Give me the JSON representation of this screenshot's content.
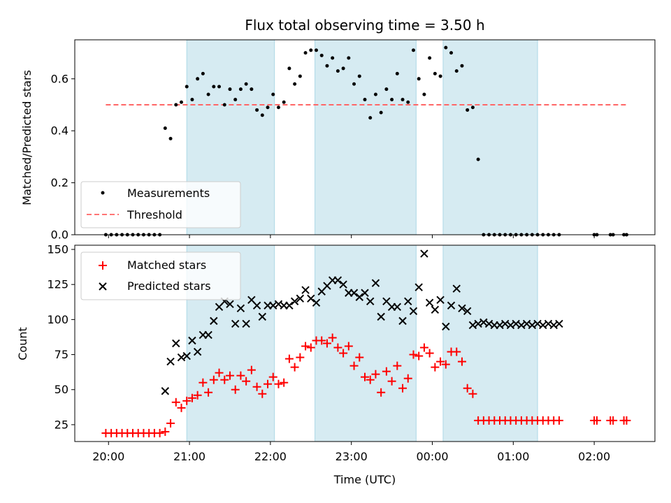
{
  "title": "Flux total observing time = 3.50 h",
  "chart_data": [
    {
      "type": "scatter",
      "ylabel": "Matched/Predicted stars",
      "xlabel": "",
      "xlim": [
        "19:35",
        "02:45"
      ],
      "ylim": [
        0,
        0.75
      ],
      "yticks": [
        0.0,
        0.2,
        0.4,
        0.6
      ],
      "ytick_labels": [
        "0.0",
        "0.2",
        "0.4",
        "0.6"
      ],
      "legend_position": "lower-left",
      "shaded_intervals": [
        [
          "20:58",
          "22:03"
        ],
        [
          "22:33",
          "23:48"
        ],
        [
          "00:08",
          "01:18"
        ]
      ],
      "shade_color": "#add8e6",
      "threshold": {
        "name": "Threshold",
        "y": 0.5,
        "x_start": "19:58",
        "x_end": "02:25",
        "color": "#ff6666"
      },
      "series": [
        {
          "name": "Measurements",
          "color": "#000000",
          "x": [
            "19:58",
            "20:02",
            "20:06",
            "20:10",
            "20:14",
            "20:18",
            "20:22",
            "20:26",
            "20:30",
            "20:34",
            "20:38",
            "20:42",
            "20:46",
            "20:50",
            "20:54",
            "20:58",
            "21:02",
            "21:06",
            "21:10",
            "21:14",
            "21:18",
            "21:22",
            "21:26",
            "21:30",
            "21:34",
            "21:38",
            "21:42",
            "21:46",
            "21:50",
            "21:54",
            "21:58",
            "22:02",
            "22:06",
            "22:10",
            "22:14",
            "22:18",
            "22:22",
            "22:26",
            "22:30",
            "22:34",
            "22:38",
            "22:42",
            "22:46",
            "22:50",
            "22:54",
            "22:58",
            "23:02",
            "23:06",
            "23:10",
            "23:14",
            "23:18",
            "23:22",
            "23:26",
            "23:30",
            "23:34",
            "23:38",
            "23:42",
            "23:46",
            "23:50",
            "23:54",
            "23:58",
            "00:02",
            "00:06",
            "00:10",
            "00:14",
            "00:18",
            "00:22",
            "00:26",
            "00:30",
            "00:34",
            "00:38",
            "00:42",
            "00:46",
            "00:50",
            "00:54",
            "00:58",
            "01:02",
            "01:06",
            "01:10",
            "01:14",
            "01:18",
            "01:22",
            "01:26",
            "01:30",
            "01:34",
            "02:00",
            "02:02",
            "02:12",
            "02:14",
            "02:22",
            "02:24"
          ],
          "y": [
            0.0,
            0.0,
            0.0,
            0.0,
            0.0,
            0.0,
            0.0,
            0.0,
            0.0,
            0.0,
            0.0,
            0.41,
            0.37,
            0.5,
            0.51,
            0.57,
            0.52,
            0.6,
            0.62,
            0.54,
            0.57,
            0.57,
            0.5,
            0.56,
            0.52,
            0.56,
            0.58,
            0.56,
            0.48,
            0.46,
            0.49,
            0.54,
            0.49,
            0.51,
            0.64,
            0.58,
            0.61,
            0.7,
            0.71,
            0.71,
            0.69,
            0.65,
            0.68,
            0.63,
            0.64,
            0.68,
            0.58,
            0.61,
            0.52,
            0.45,
            0.54,
            0.47,
            0.56,
            0.52,
            0.62,
            0.52,
            0.51,
            0.71,
            0.6,
            0.54,
            0.68,
            0.62,
            0.61,
            0.72,
            0.7,
            0.63,
            0.65,
            0.48,
            0.49,
            0.29,
            0.0,
            0.0,
            0.0,
            0.0,
            0.0,
            0.0,
            0.0,
            0.0,
            0.0,
            0.0,
            0.0,
            0.0,
            0.0,
            0.0,
            0.0,
            0.0,
            0.0,
            0.0,
            0.0,
            0.0,
            0.0
          ]
        }
      ]
    },
    {
      "type": "scatter",
      "ylabel": "Count",
      "xlabel": "Time (UTC)",
      "xlim": [
        "19:35",
        "02:45"
      ],
      "ylim": [
        13,
        153
      ],
      "yticks": [
        25,
        50,
        75,
        100,
        125,
        150
      ],
      "ytick_labels": [
        "25",
        "50",
        "75",
        "100",
        "125",
        "150"
      ],
      "xticks": [
        "20:00",
        "21:00",
        "22:00",
        "23:00",
        "00:00",
        "01:00",
        "02:00"
      ],
      "xtick_labels": [
        "20:00",
        "21:00",
        "22:00",
        "23:00",
        "00:00",
        "01:00",
        "02:00"
      ],
      "legend_position": "upper-left",
      "shaded_intervals": [
        [
          "20:58",
          "22:03"
        ],
        [
          "22:33",
          "23:48"
        ],
        [
          "00:08",
          "01:18"
        ]
      ],
      "shade_color": "#add8e6",
      "series": [
        {
          "name": "Matched stars",
          "marker": "plus",
          "color": "#ff0000",
          "x": [
            "19:58",
            "20:02",
            "20:06",
            "20:10",
            "20:14",
            "20:18",
            "20:22",
            "20:26",
            "20:30",
            "20:34",
            "20:38",
            "20:42",
            "20:46",
            "20:50",
            "20:54",
            "20:58",
            "21:02",
            "21:06",
            "21:10",
            "21:14",
            "21:18",
            "21:22",
            "21:26",
            "21:30",
            "21:34",
            "21:38",
            "21:42",
            "21:46",
            "21:50",
            "21:54",
            "21:58",
            "22:02",
            "22:06",
            "22:10",
            "22:14",
            "22:18",
            "22:22",
            "22:26",
            "22:30",
            "22:34",
            "22:38",
            "22:42",
            "22:46",
            "22:50",
            "22:54",
            "22:58",
            "23:02",
            "23:06",
            "23:10",
            "23:14",
            "23:18",
            "23:22",
            "23:26",
            "23:30",
            "23:34",
            "23:38",
            "23:42",
            "23:46",
            "23:50",
            "23:54",
            "23:58",
            "00:02",
            "00:06",
            "00:10",
            "00:14",
            "00:18",
            "00:22",
            "00:26",
            "00:30",
            "00:34",
            "00:38",
            "00:42",
            "00:46",
            "00:50",
            "00:54",
            "00:58",
            "01:02",
            "01:06",
            "01:10",
            "01:14",
            "01:18",
            "01:22",
            "01:26",
            "01:30",
            "01:34",
            "02:00",
            "02:02",
            "02:12",
            "02:14",
            "02:22",
            "02:24"
          ],
          "y": [
            19,
            19,
            19,
            19,
            19,
            19,
            19,
            19,
            19,
            19,
            19,
            20,
            26,
            41,
            37,
            42,
            44,
            46,
            55,
            48,
            57,
            62,
            57,
            60,
            50,
            60,
            56,
            64,
            52,
            47,
            54,
            59,
            54,
            55,
            72,
            66,
            73,
            81,
            80,
            85,
            85,
            83,
            87,
            80,
            76,
            81,
            67,
            73,
            59,
            57,
            61,
            48,
            63,
            56,
            67,
            51,
            58,
            75,
            74,
            80,
            76,
            66,
            70,
            68,
            77,
            77,
            70,
            51,
            47,
            28,
            28,
            28,
            28,
            28,
            28,
            28,
            28,
            28,
            28,
            28,
            28,
            28,
            28,
            28,
            28,
            28,
            28,
            28,
            28,
            28,
            28
          ]
        },
        {
          "name": "Predicted stars",
          "marker": "x",
          "color": "#000000",
          "x": [
            "20:42",
            "20:46",
            "20:50",
            "20:54",
            "20:58",
            "21:02",
            "21:06",
            "21:10",
            "21:14",
            "21:18",
            "21:22",
            "21:26",
            "21:30",
            "21:34",
            "21:38",
            "21:42",
            "21:46",
            "21:50",
            "21:54",
            "21:58",
            "22:02",
            "22:06",
            "22:10",
            "22:14",
            "22:18",
            "22:22",
            "22:26",
            "22:30",
            "22:34",
            "22:38",
            "22:42",
            "22:46",
            "22:50",
            "22:54",
            "22:58",
            "23:02",
            "23:06",
            "23:10",
            "23:14",
            "23:18",
            "23:22",
            "23:26",
            "23:30",
            "23:34",
            "23:38",
            "23:42",
            "23:46",
            "23:50",
            "23:54",
            "23:58",
            "00:02",
            "00:06",
            "00:10",
            "00:14",
            "00:18",
            "00:22",
            "00:26",
            "00:30",
            "00:34",
            "00:38",
            "00:42",
            "00:46",
            "00:50",
            "00:54",
            "00:58",
            "01:02",
            "01:06",
            "01:10",
            "01:14",
            "01:18",
            "01:22",
            "01:26",
            "01:30",
            "01:34"
          ],
          "y": [
            49,
            70,
            83,
            73,
            74,
            85,
            77,
            89,
            89,
            99,
            109,
            113,
            111,
            97,
            108,
            97,
            114,
            110,
            102,
            110,
            110,
            111,
            110,
            110,
            113,
            115,
            121,
            115,
            112,
            120,
            124,
            128,
            128,
            125,
            119,
            119,
            116,
            119,
            113,
            126,
            102,
            113,
            109,
            109,
            99,
            113,
            106,
            123,
            147,
            112,
            107,
            114,
            95,
            110,
            122,
            108,
            106,
            96,
            97,
            98,
            97,
            96,
            96,
            97,
            96,
            97,
            96,
            97,
            96,
            97,
            96,
            97,
            96,
            97
          ]
        }
      ]
    }
  ]
}
